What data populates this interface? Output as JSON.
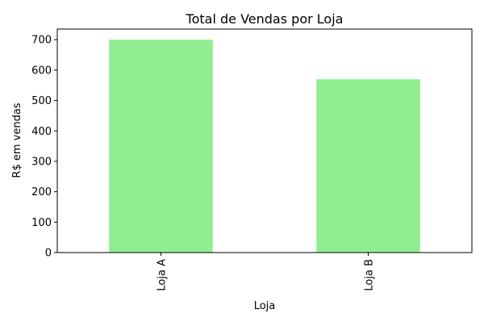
{
  "chart_data": {
    "type": "bar",
    "title": "Total de Vendas por Loja",
    "xlabel": "Loja",
    "ylabel": "R$ em vendas",
    "categories": [
      "Loja A",
      "Loja B"
    ],
    "values": [
      700,
      570
    ],
    "ylim": [
      0,
      735
    ],
    "yticks": [
      0,
      100,
      200,
      300,
      400,
      500,
      600,
      700
    ],
    "grid": false,
    "bar_color": "#90EE90"
  }
}
